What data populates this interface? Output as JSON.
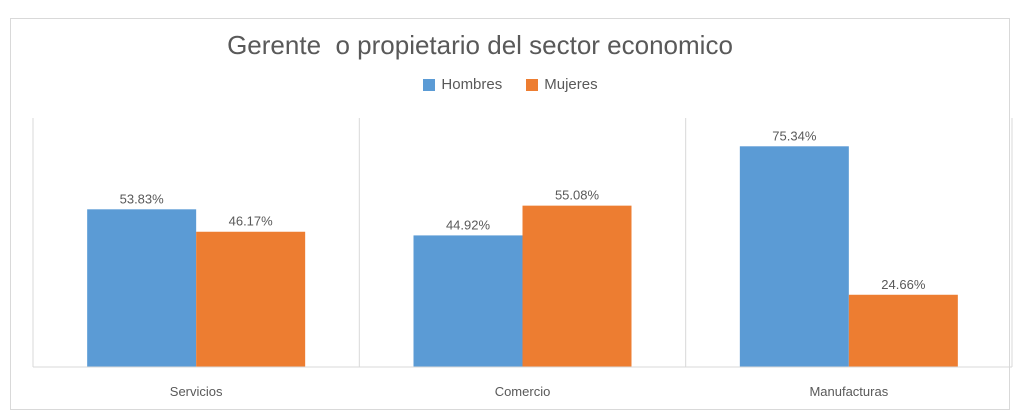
{
  "chart_data": {
    "type": "bar",
    "title": "Gerente  o propietario del sector economico",
    "categories": [
      "Servicios",
      "Comercio",
      "Manufacturas"
    ],
    "series": [
      {
        "name": "Hombres",
        "color": "#5b9bd5",
        "values": [
          53.83,
          44.92,
          75.34
        ],
        "labels": [
          "53.83%",
          "44.92%",
          "75.34%"
        ]
      },
      {
        "name": "Mujeres",
        "color": "#ed7d31",
        "values": [
          46.17,
          55.08,
          24.66
        ],
        "labels": [
          "46.17%",
          "55.08%",
          "24.66%"
        ]
      }
    ],
    "ylim": [
      0,
      85
    ],
    "legend_position": "top",
    "grid": false
  }
}
